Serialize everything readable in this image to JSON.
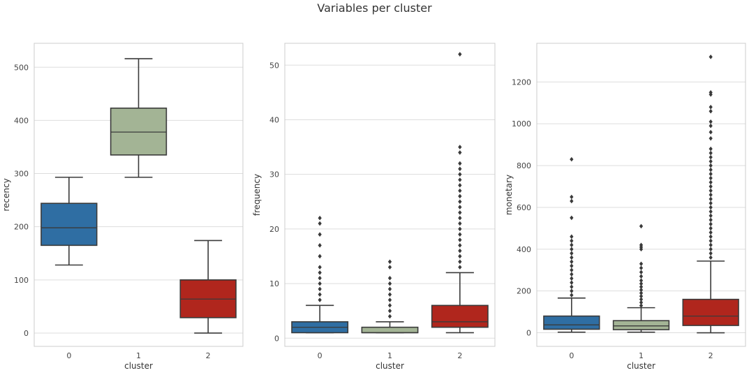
{
  "title": "Variables per cluster",
  "colors": {
    "cluster_0": "#2f6ea3",
    "cluster_1": "#a3b495",
    "cluster_2": "#b0261d",
    "whisker": "#3a3a3a",
    "grid": "#dddddd",
    "frame": "#cccccc"
  },
  "chart_data": [
    {
      "type": "box",
      "xlabel": "cluster",
      "ylabel": "recency",
      "categories": [
        "0",
        "1",
        "2"
      ],
      "ylim": [
        -25,
        545
      ],
      "yticks": [
        0,
        100,
        200,
        300,
        400,
        500
      ],
      "grid": true,
      "boxes": [
        {
          "cluster": "0",
          "whislo": 128,
          "q1": 165,
          "med": 198,
          "q3": 244,
          "whishi": 293,
          "fliers": []
        },
        {
          "cluster": "1",
          "whislo": 293,
          "q1": 335,
          "med": 378,
          "q3": 423,
          "whishi": 516,
          "fliers": []
        },
        {
          "cluster": "2",
          "whislo": 0,
          "q1": 29,
          "med": 64,
          "q3": 100,
          "whishi": 174,
          "fliers": []
        }
      ]
    },
    {
      "type": "box",
      "xlabel": "cluster",
      "ylabel": "frequency",
      "categories": [
        "0",
        "1",
        "2"
      ],
      "ylim": [
        -1.5,
        54
      ],
      "yticks": [
        0,
        10,
        20,
        30,
        40,
        50
      ],
      "grid": true,
      "boxes": [
        {
          "cluster": "0",
          "whislo": 1,
          "q1": 1,
          "med": 2,
          "q3": 3,
          "whishi": 6,
          "fliers": [
            7,
            8,
            9,
            10,
            11,
            12,
            13,
            15,
            17,
            19,
            21,
            22
          ]
        },
        {
          "cluster": "1",
          "whislo": 1,
          "q1": 1,
          "med": 1,
          "q3": 2,
          "whishi": 3,
          "fliers": [
            4,
            5,
            6,
            7,
            8,
            9,
            10,
            11,
            13,
            14
          ]
        },
        {
          "cluster": "2",
          "whislo": 1,
          "q1": 2,
          "med": 3,
          "q3": 6,
          "whishi": 12,
          "fliers": [
            13,
            14,
            15,
            16,
            17,
            18,
            19,
            20,
            21,
            22,
            23,
            24,
            25,
            26,
            27,
            28,
            29,
            30,
            31,
            32,
            34,
            35,
            52
          ]
        }
      ]
    },
    {
      "type": "box",
      "xlabel": "cluster",
      "ylabel": "monetary",
      "categories": [
        "0",
        "1",
        "2"
      ],
      "ylim": [
        -65,
        1385
      ],
      "yticks": [
        0,
        200,
        400,
        600,
        800,
        1000,
        1200
      ],
      "grid": true,
      "boxes": [
        {
          "cluster": "0",
          "whislo": 3,
          "q1": 17,
          "med": 38,
          "q3": 80,
          "whishi": 166,
          "fliers": [
            180,
            200,
            220,
            240,
            260,
            280,
            300,
            320,
            340,
            360,
            380,
            400,
            420,
            440,
            460,
            550,
            630,
            650,
            830
          ]
        },
        {
          "cluster": "1",
          "whislo": 3,
          "q1": 15,
          "med": 33,
          "q3": 58,
          "whishi": 120,
          "fliers": [
            130,
            145,
            160,
            175,
            190,
            205,
            220,
            235,
            250,
            270,
            290,
            310,
            330,
            400,
            410,
            420,
            510
          ]
        },
        {
          "cluster": "2",
          "whislo": 0,
          "q1": 35,
          "med": 80,
          "q3": 160,
          "whishi": 343,
          "fliers": [
            360,
            380,
            400,
            420,
            440,
            460,
            480,
            500,
            520,
            540,
            560,
            580,
            600,
            620,
            640,
            660,
            680,
            700,
            720,
            740,
            760,
            780,
            800,
            820,
            840,
            860,
            880,
            930,
            960,
            990,
            1010,
            1060,
            1080,
            1140,
            1150,
            1320
          ]
        }
      ]
    }
  ]
}
